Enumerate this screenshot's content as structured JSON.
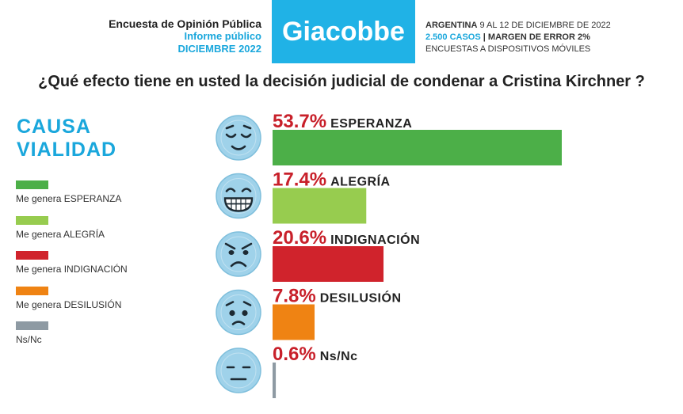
{
  "header": {
    "survey_title": "Encuesta de Opinión Pública",
    "report_type": "Informe público",
    "date": "DICIEMBRE 2022",
    "brand": "Giacobbe",
    "country_label": "ARGENTINA",
    "dates_range": "9 AL 12 DE DICIEMBRE DE 2022",
    "cases": "2.500 CASOS",
    "separator": "|",
    "margin": "MARGEN DE ERROR 2%",
    "method": "ENCUESTAS A DISPOSITIVOS MÓVILES"
  },
  "section": {
    "title_line1": "CAUSA",
    "title_line2": "VIALIDAD"
  },
  "colors": {
    "esperanza": "#4caf48",
    "alegria": "#97cc4f",
    "indignacion": "#d0232c",
    "desilusion": "#ef8313",
    "nsnc": "#8e9aa3",
    "accent": "#20b2e6",
    "percent": "#c8202a",
    "face": "#9fd2ea"
  },
  "legend": [
    {
      "label": "Me genera ESPERANZA",
      "color": "#4caf48"
    },
    {
      "label": "Me genera ALEGRÍA",
      "color": "#97cc4f"
    },
    {
      "label": "Me genera INDIGNACIÓN",
      "color": "#d0232c"
    },
    {
      "label": "Me genera DESILUSIÓN",
      "color": "#ef8313"
    },
    {
      "label": "Ns/Nc",
      "color": "#8e9aa3"
    }
  ],
  "chart_data": {
    "type": "bar",
    "orientation": "horizontal",
    "title": "¿Qué efecto tiene en usted la decisión judicial de condenar a Cristina Kirchner ?",
    "categories": [
      "ESPERANZA",
      "ALEGRÍA",
      "INDIGNACIÓN",
      "DESILUSIÓN",
      "Ns/Nc"
    ],
    "values": [
      53.7,
      17.4,
      20.6,
      7.8,
      0.6
    ],
    "value_labels": [
      "53.7%",
      "17.4%",
      "20.6%",
      "7.8%",
      "0.6%"
    ],
    "colors": [
      "#4caf48",
      "#97cc4f",
      "#d0232c",
      "#ef8313",
      "#8e9aa3"
    ],
    "icons": [
      "relieved-face-icon",
      "grinning-face-icon",
      "angry-face-icon",
      "worried-face-icon",
      "neutral-face-icon"
    ],
    "xlim": [
      0,
      100
    ],
    "grid": false,
    "legend_position": "left"
  }
}
